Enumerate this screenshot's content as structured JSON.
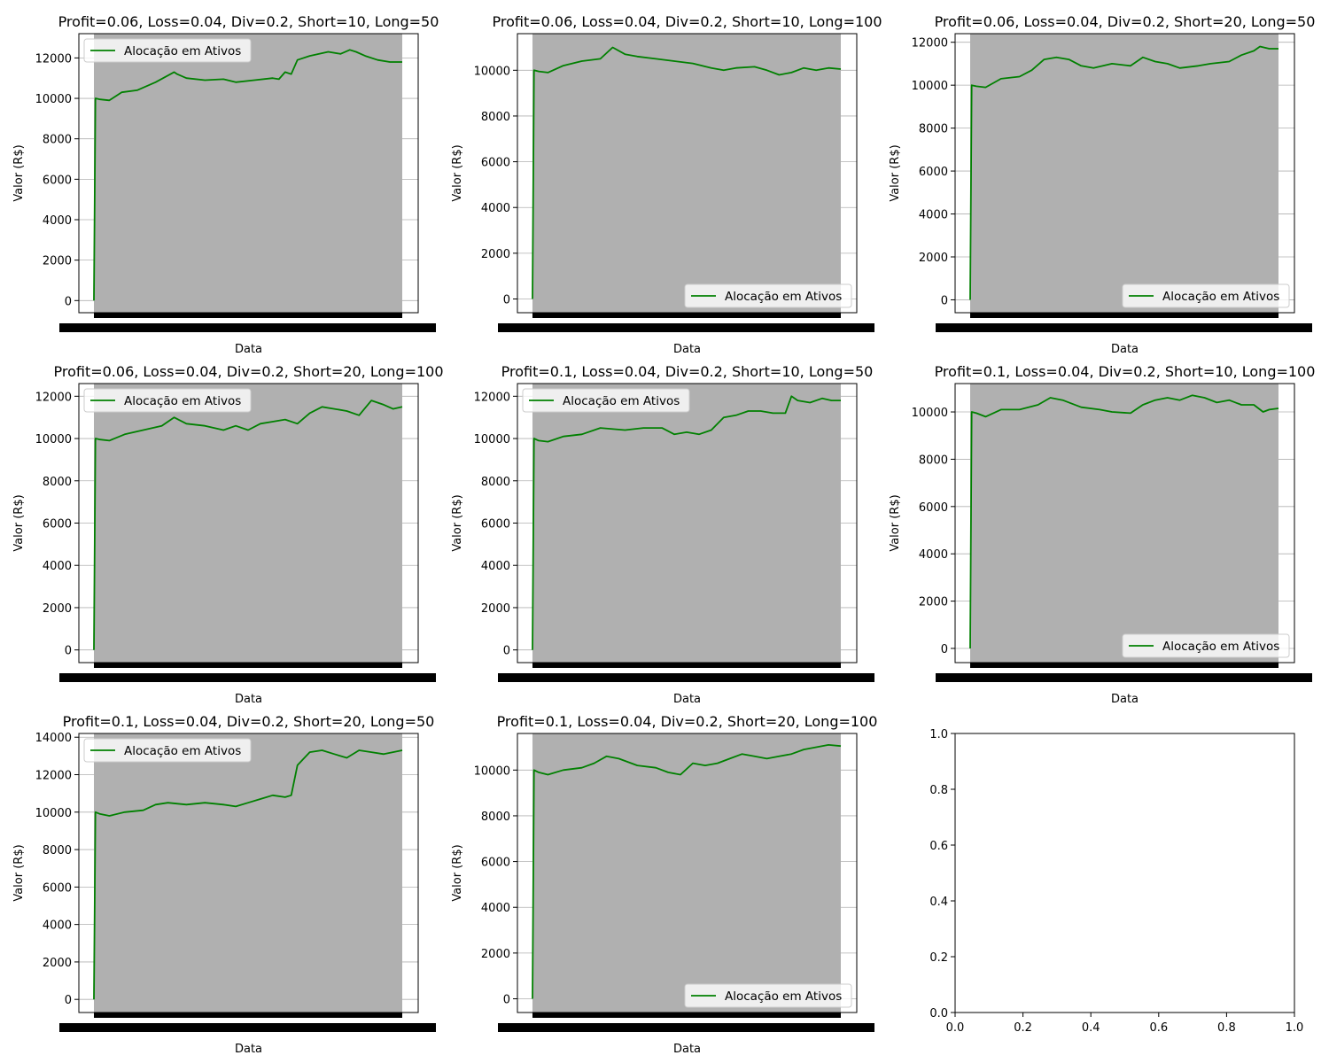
{
  "figure": {
    "background": "#ffffff"
  },
  "style": {
    "line_color": "#008000",
    "fill_color": "#b0b0b0",
    "grid_color": "#b0b0b0"
  },
  "chart_data": [
    {
      "type": "line",
      "title": "Profit=0.06, Loss=0.04, Div=0.2, Short=10, Long=50",
      "xlabel": "Data",
      "ylabel": "Valor (R$)",
      "ylim": [
        -600,
        13200
      ],
      "yticks": [
        0,
        2000,
        4000,
        6000,
        8000,
        10000,
        12000
      ],
      "grid": true,
      "legend_position": "upper-left",
      "legend": [
        "Alocação em Ativos"
      ],
      "series": [
        {
          "name": "Alocação em Ativos",
          "color": "#008000",
          "x": [
            0,
            0.005,
            0.02,
            0.05,
            0.09,
            0.14,
            0.2,
            0.26,
            0.27,
            0.3,
            0.36,
            0.42,
            0.46,
            0.52,
            0.58,
            0.6,
            0.62,
            0.64,
            0.66,
            0.7,
            0.76,
            0.8,
            0.83,
            0.85,
            0.88,
            0.92,
            0.96,
            1.0
          ],
          "values": [
            0,
            10000,
            9950,
            9900,
            10300,
            10400,
            10800,
            11300,
            11200,
            11000,
            10900,
            10950,
            10800,
            10900,
            11000,
            10950,
            11300,
            11200,
            11900,
            12100,
            12300,
            12200,
            12400,
            12300,
            12100,
            11900,
            11800,
            11800
          ]
        }
      ]
    },
    {
      "type": "line",
      "title": "Profit=0.06, Loss=0.04, Div=0.2, Short=10, Long=100",
      "xlabel": "Data",
      "ylabel": "Valor (R$)",
      "ylim": [
        -600,
        11600
      ],
      "yticks": [
        0,
        2000,
        4000,
        6000,
        8000,
        10000
      ],
      "grid": true,
      "legend_position": "lower-right",
      "legend": [
        "Alocação em Ativos"
      ],
      "series": [
        {
          "name": "Alocação em Ativos",
          "color": "#008000",
          "x": [
            0,
            0.005,
            0.02,
            0.05,
            0.1,
            0.16,
            0.22,
            0.26,
            0.3,
            0.34,
            0.4,
            0.46,
            0.52,
            0.58,
            0.62,
            0.66,
            0.72,
            0.76,
            0.8,
            0.84,
            0.88,
            0.92,
            0.96,
            1.0
          ],
          "values": [
            0,
            10000,
            9950,
            9900,
            10200,
            10400,
            10500,
            11000,
            10700,
            10600,
            10500,
            10400,
            10300,
            10100,
            10000,
            10100,
            10150,
            10000,
            9800,
            9900,
            10100,
            10000,
            10100,
            10050
          ]
        }
      ]
    },
    {
      "type": "line",
      "title": "Profit=0.06, Loss=0.04, Div=0.2, Short=20, Long=50",
      "xlabel": "Data",
      "ylabel": "Valor (R$)",
      "ylim": [
        -600,
        12400
      ],
      "yticks": [
        0,
        2000,
        4000,
        6000,
        8000,
        10000,
        12000
      ],
      "grid": true,
      "legend_position": "lower-right",
      "legend": [
        "Alocação em Ativos"
      ],
      "series": [
        {
          "name": "Alocação em Ativos",
          "color": "#008000",
          "x": [
            0,
            0.005,
            0.02,
            0.05,
            0.1,
            0.16,
            0.2,
            0.24,
            0.28,
            0.32,
            0.36,
            0.4,
            0.46,
            0.52,
            0.56,
            0.6,
            0.64,
            0.68,
            0.74,
            0.78,
            0.84,
            0.88,
            0.92,
            0.94,
            0.97,
            1.0
          ],
          "values": [
            0,
            10000,
            9950,
            9900,
            10300,
            10400,
            10700,
            11200,
            11300,
            11200,
            10900,
            10800,
            11000,
            10900,
            11300,
            11100,
            11000,
            10800,
            10900,
            11000,
            11100,
            11400,
            11600,
            11800,
            11700,
            11700
          ]
        }
      ]
    },
    {
      "type": "line",
      "title": "Profit=0.06, Loss=0.04, Div=0.2, Short=20, Long=100",
      "xlabel": "Data",
      "ylabel": "Valor (R$)",
      "ylim": [
        -600,
        12600
      ],
      "yticks": [
        0,
        2000,
        4000,
        6000,
        8000,
        10000,
        12000
      ],
      "grid": true,
      "legend_position": "upper-left",
      "legend": [
        "Alocação em Ativos"
      ],
      "series": [
        {
          "name": "Alocação em Ativos",
          "color": "#008000",
          "x": [
            0,
            0.005,
            0.02,
            0.05,
            0.1,
            0.16,
            0.22,
            0.26,
            0.3,
            0.36,
            0.42,
            0.46,
            0.5,
            0.54,
            0.58,
            0.62,
            0.66,
            0.7,
            0.74,
            0.78,
            0.82,
            0.86,
            0.9,
            0.94,
            0.97,
            1.0
          ],
          "values": [
            0,
            10000,
            9950,
            9900,
            10200,
            10400,
            10600,
            11000,
            10700,
            10600,
            10400,
            10600,
            10400,
            10700,
            10800,
            10900,
            10700,
            11200,
            11500,
            11400,
            11300,
            11100,
            11800,
            11600,
            11400,
            11500
          ]
        }
      ]
    },
    {
      "type": "line",
      "title": "Profit=0.1, Loss=0.04, Div=0.2, Short=10, Long=50",
      "xlabel": "Data",
      "ylabel": "Valor (R$)",
      "ylim": [
        -600,
        12600
      ],
      "yticks": [
        0,
        2000,
        4000,
        6000,
        8000,
        10000,
        12000
      ],
      "grid": true,
      "legend_position": "upper-left",
      "legend": [
        "Alocação em Ativos"
      ],
      "series": [
        {
          "name": "Alocação em Ativos",
          "color": "#008000",
          "x": [
            0,
            0.005,
            0.02,
            0.05,
            0.1,
            0.16,
            0.22,
            0.3,
            0.36,
            0.42,
            0.46,
            0.5,
            0.54,
            0.58,
            0.62,
            0.66,
            0.7,
            0.74,
            0.78,
            0.82,
            0.84,
            0.86,
            0.9,
            0.94,
            0.97,
            1.0
          ],
          "values": [
            0,
            10000,
            9900,
            9850,
            10100,
            10200,
            10500,
            10400,
            10500,
            10500,
            10200,
            10300,
            10200,
            10400,
            11000,
            11100,
            11300,
            11300,
            11200,
            11200,
            12000,
            11800,
            11700,
            11900,
            11800,
            11800
          ]
        }
      ]
    },
    {
      "type": "line",
      "title": "Profit=0.1, Loss=0.04, Div=0.2, Short=10, Long=100",
      "xlabel": "Data",
      "ylabel": "Valor (R$)",
      "ylim": [
        -600,
        11200
      ],
      "yticks": [
        0,
        2000,
        4000,
        6000,
        8000,
        10000
      ],
      "grid": true,
      "legend_position": "lower-right",
      "legend": [
        "Alocação em Ativos"
      ],
      "series": [
        {
          "name": "Alocação em Ativos",
          "color": "#008000",
          "x": [
            0,
            0.005,
            0.02,
            0.05,
            0.1,
            0.16,
            0.22,
            0.26,
            0.3,
            0.36,
            0.42,
            0.46,
            0.52,
            0.56,
            0.6,
            0.64,
            0.68,
            0.72,
            0.76,
            0.8,
            0.84,
            0.88,
            0.92,
            0.95,
            0.97,
            1.0
          ],
          "values": [
            0,
            10000,
            9950,
            9800,
            10100,
            10100,
            10300,
            10600,
            10500,
            10200,
            10100,
            10000,
            9950,
            10300,
            10500,
            10600,
            10500,
            10700,
            10600,
            10400,
            10500,
            10300,
            10300,
            10000,
            10100,
            10150
          ]
        }
      ]
    },
    {
      "type": "line",
      "title": "Profit=0.1, Loss=0.04, Div=0.2, Short=20, Long=50",
      "xlabel": "Data",
      "ylabel": "Valor (R$)",
      "ylim": [
        -700,
        14200
      ],
      "yticks": [
        0,
        2000,
        4000,
        6000,
        8000,
        10000,
        12000,
        14000
      ],
      "grid": true,
      "legend_position": "upper-left",
      "legend": [
        "Alocação em Ativos"
      ],
      "series": [
        {
          "name": "Alocação em Ativos",
          "color": "#008000",
          "x": [
            0,
            0.005,
            0.02,
            0.05,
            0.1,
            0.16,
            0.2,
            0.24,
            0.3,
            0.36,
            0.42,
            0.46,
            0.5,
            0.54,
            0.58,
            0.62,
            0.64,
            0.66,
            0.7,
            0.74,
            0.78,
            0.82,
            0.86,
            0.9,
            0.94,
            0.97,
            1.0
          ],
          "values": [
            0,
            10000,
            9900,
            9800,
            10000,
            10100,
            10400,
            10500,
            10400,
            10500,
            10400,
            10300,
            10500,
            10700,
            10900,
            10800,
            10900,
            12500,
            13200,
            13300,
            13100,
            12900,
            13300,
            13200,
            13100,
            13200,
            13300
          ]
        }
      ]
    },
    {
      "type": "line",
      "title": "Profit=0.1, Loss=0.04, Div=0.2, Short=20, Long=100",
      "xlabel": "Data",
      "ylabel": "Valor (R$)",
      "ylim": [
        -600,
        11600
      ],
      "yticks": [
        0,
        2000,
        4000,
        6000,
        8000,
        10000
      ],
      "grid": true,
      "legend_position": "lower-right",
      "legend": [
        "Alocação em Ativos"
      ],
      "series": [
        {
          "name": "Alocação em Ativos",
          "color": "#008000",
          "x": [
            0,
            0.005,
            0.02,
            0.05,
            0.1,
            0.16,
            0.2,
            0.24,
            0.28,
            0.34,
            0.4,
            0.44,
            0.48,
            0.52,
            0.56,
            0.6,
            0.64,
            0.68,
            0.72,
            0.76,
            0.8,
            0.84,
            0.88,
            0.92,
            0.96,
            1.0
          ],
          "values": [
            0,
            10000,
            9900,
            9800,
            10000,
            10100,
            10300,
            10600,
            10500,
            10200,
            10100,
            9900,
            9800,
            10300,
            10200,
            10300,
            10500,
            10700,
            10600,
            10500,
            10600,
            10700,
            10900,
            11000,
            11100,
            11050
          ]
        }
      ]
    },
    {
      "type": "line",
      "title": "",
      "xlabel": "",
      "ylabel": "",
      "xlim": [
        0,
        1
      ],
      "ylim": [
        0,
        1
      ],
      "xticks": [
        0.0,
        0.2,
        0.4,
        0.6,
        0.8,
        1.0
      ],
      "yticks": [
        0.0,
        0.2,
        0.4,
        0.6,
        0.8,
        1.0
      ],
      "tick_labels": [
        "0.0",
        "0.2",
        "0.4",
        "0.6",
        "0.8",
        "1.0"
      ],
      "grid": false,
      "legend": [],
      "series": []
    }
  ]
}
